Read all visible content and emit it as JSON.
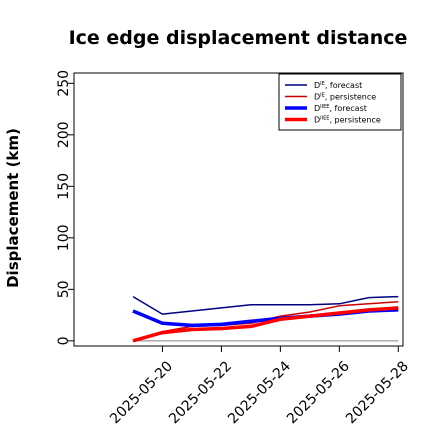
{
  "chart_data": {
    "type": "line",
    "title": "Ice edge displacement distance",
    "xlabel": "",
    "ylabel": "Displacement (km)",
    "ylim": [
      -5,
      260
    ],
    "yticks": [
      0,
      50,
      100,
      150,
      200,
      250
    ],
    "xlim": [
      "2025-05-18",
      "2025-05-28"
    ],
    "xticks": [
      "2025-05-20",
      "2025-05-22",
      "2025-05-24",
      "2025-05-26",
      "2025-05-28"
    ],
    "xtick_colors": [
      "#1a9a1a",
      "#000000",
      "#000000",
      "#000000",
      "#000000"
    ],
    "x": [
      "2025-05-19",
      "2025-05-20",
      "2025-05-21",
      "2025-05-22",
      "2025-05-23",
      "2025-05-24",
      "2025-05-25",
      "2025-05-26",
      "2025-05-27",
      "2025-05-28"
    ],
    "grid": false,
    "legend_position": "top-right",
    "series": [
      {
        "name": "D^IE, forecast",
        "label_main": "D",
        "label_sup": "IE",
        "label_rest": ", forecast",
        "color": "#000080",
        "width": "thin",
        "values": [
          43,
          26,
          29,
          32,
          35,
          35,
          35,
          36,
          42,
          43
        ]
      },
      {
        "name": "D^IE, persistence",
        "label_main": "D",
        "label_sup": "IE",
        "label_rest": ", persistence",
        "color": "#cc0000",
        "width": "thin",
        "values": [
          0,
          9,
          14,
          15,
          17,
          24,
          28,
          34,
          36,
          38
        ]
      },
      {
        "name": "D^IIEE, forecast",
        "label_main": "D",
        "label_sup": "IIEE",
        "label_rest": ", forecast",
        "color": "#0000ff",
        "width": "thick",
        "values": [
          29,
          17,
          15,
          16,
          19,
          22,
          24,
          26,
          29,
          30
        ]
      },
      {
        "name": "D^IIEE, persistence",
        "label_main": "D",
        "label_sup": "IIEE",
        "label_rest": ", persistence",
        "color": "#ff0000",
        "width": "thick",
        "values": [
          0,
          8,
          11,
          12,
          14,
          21,
          24,
          27,
          30,
          32
        ]
      }
    ],
    "reference_line": {
      "value": 0,
      "color": "#808080"
    }
  }
}
